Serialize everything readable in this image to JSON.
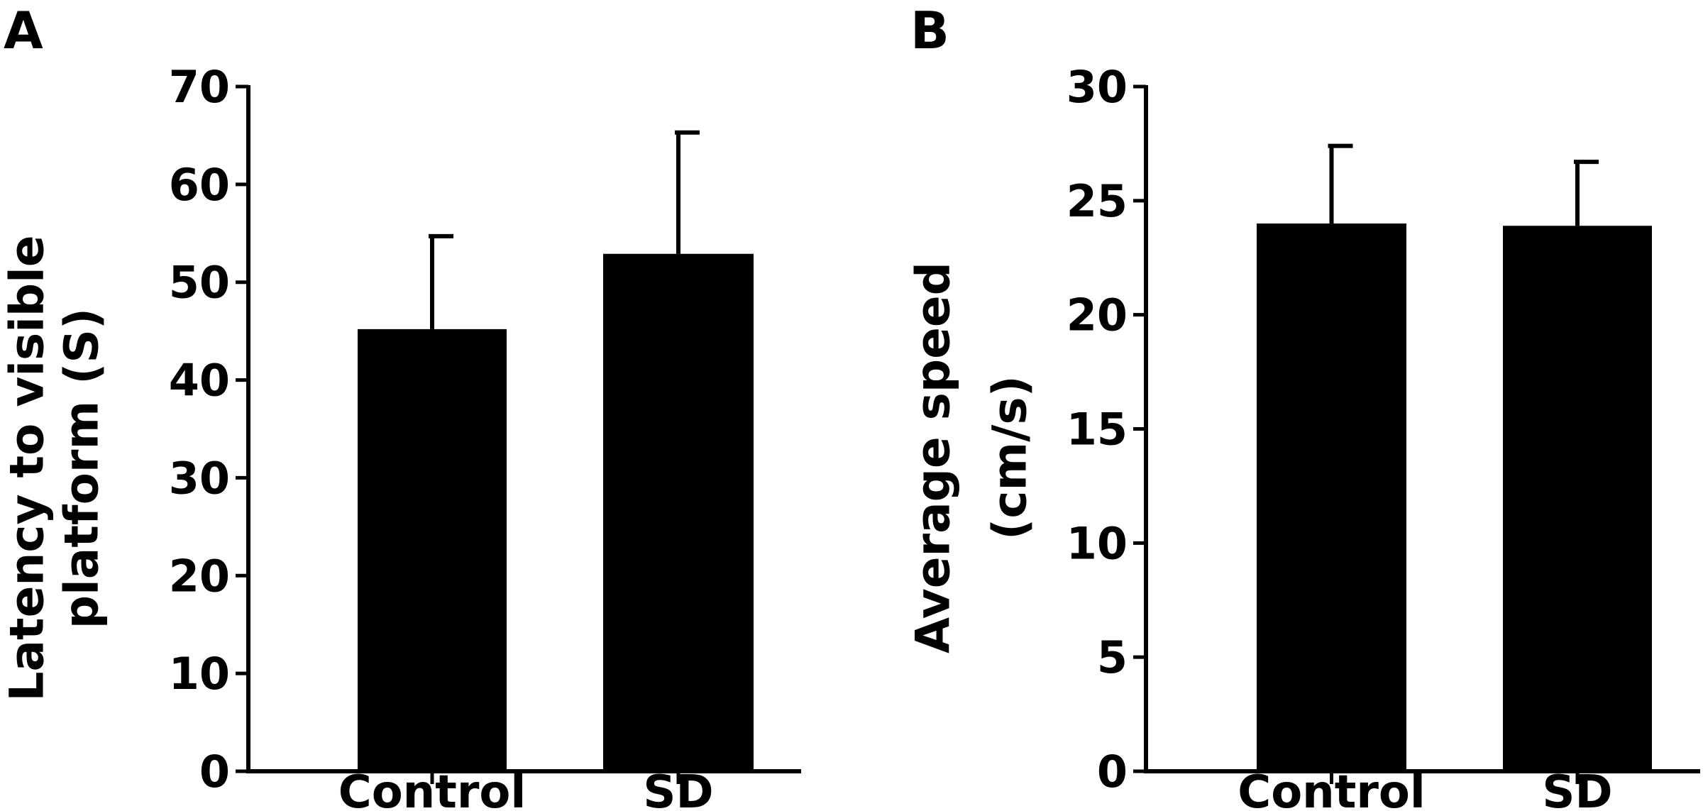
{
  "chart_data": [
    {
      "panel_label": "A",
      "type": "bar",
      "categories": [
        "Control",
        "SD"
      ],
      "values": [
        45.2,
        52.9
      ],
      "error_upper": [
        54.7,
        65.3
      ],
      "ylabel_lines": [
        "Latency to visible",
        "platform (S)"
      ],
      "xlabel": "",
      "ylim": [
        0,
        70
      ],
      "yticks": [
        0,
        10,
        20,
        30,
        40,
        50,
        60,
        70
      ],
      "grid": false,
      "bar_color": "#000000"
    },
    {
      "panel_label": "B",
      "type": "bar",
      "categories": [
        "Control",
        "SD"
      ],
      "values": [
        24.0,
        23.9
      ],
      "error_upper": [
        27.4,
        26.7
      ],
      "ylabel_lines": [
        "Average speed",
        "(cm/s)"
      ],
      "xlabel": "",
      "ylim": [
        0,
        30
      ],
      "yticks": [
        0,
        5,
        10,
        15,
        20,
        25,
        30
      ],
      "grid": false,
      "bar_color": "#000000"
    }
  ]
}
